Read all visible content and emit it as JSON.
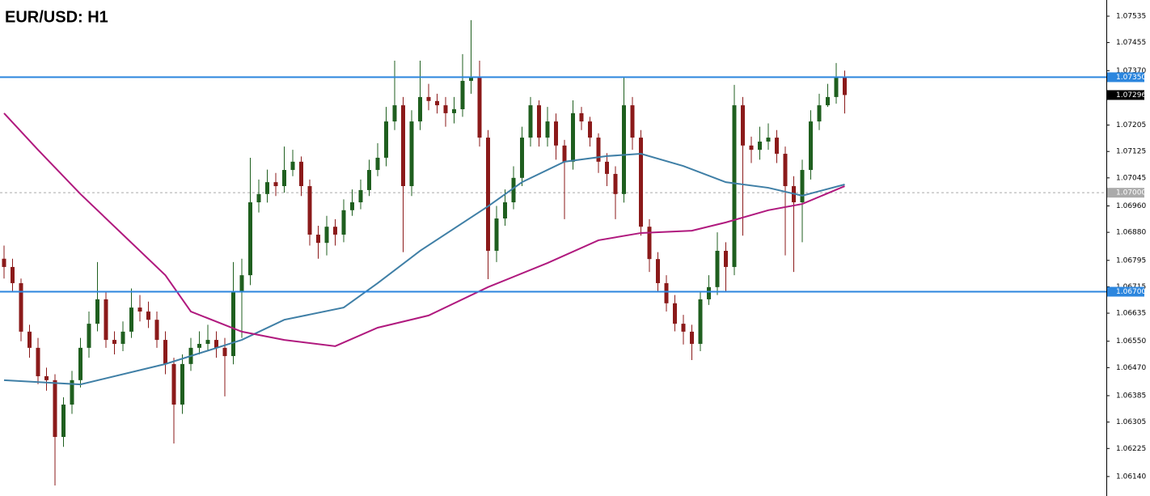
{
  "chart_data": {
    "type": "candlestick",
    "title": "EUR/USD: H1",
    "ylim": [
      1.06081,
      1.07584
    ],
    "yticks": [
      1.07535,
      1.07455,
      {
        "value": 1.0737,
        "label": "1.07370"
      },
      1.07205,
      1.07125,
      1.07045,
      {
        "value": 1.0696,
        "label": "1.06960"
      },
      {
        "value": 1.0688,
        "label": "1.06880"
      },
      1.06795,
      1.06715,
      1.06635,
      {
        "value": 1.0655,
        "label": "1.06550"
      },
      {
        "value": 1.0647,
        "label": "1.06470"
      },
      1.06385,
      1.06305,
      1.06225,
      {
        "value": 1.0614,
        "label": "1.06140"
      }
    ],
    "up_color": "#1f5f1f",
    "down_color": "#8b1a1a",
    "open": [
      1.068,
      1.06775,
      1.06726,
      1.06579,
      1.0653,
      1.06444,
      1.06432,
      1.0626,
      1.06358,
      1.06432,
      1.0653,
      1.06603,
      1.06677,
      1.06554,
      1.06542,
      1.06579,
      1.06652,
      1.0664,
      1.06615,
      1.06554,
      1.06481,
      1.06358,
      1.06481,
      1.0653,
      1.06542,
      1.06554,
      1.0653,
      1.06505,
      1.06701,
      1.0675,
      1.06971,
      1.06996,
      1.07032,
      1.0702,
      1.07069,
      1.07094,
      1.0702,
      1.06873,
      1.06848,
      1.06897,
      1.06873,
      1.06947,
      1.06971,
      1.07008,
      1.07069,
      1.07106,
      1.07216,
      1.07265,
      1.0702,
      1.07216,
      1.0729,
      1.07278,
      1.07265,
      1.07241,
      1.07253,
      1.07339,
      1.07351,
      1.07167,
      1.06824,
      1.06922,
      1.06971,
      1.07045,
      1.07167,
      1.07265,
      1.07167,
      1.07216,
      1.07143,
      1.07094,
      1.07241,
      1.07216,
      1.07167,
      1.07094,
      1.07057,
      1.06996,
      1.07265,
      1.07167,
      1.06897,
      1.06799,
      1.06726,
      1.06665,
      1.06603,
      1.06579,
      1.06542,
      1.06677,
      1.06714,
      1.06824,
      1.06775,
      1.07265,
      1.07143,
      1.0713,
      1.07155,
      1.07167,
      1.07118,
      1.0702,
      1.06971,
      1.07069,
      1.07216,
      1.07265,
      1.0729,
      1.07351
    ],
    "high": [
      1.0684,
      1.068,
      1.0674,
      1.066,
      1.0656,
      1.0647,
      1.0645,
      1.0638,
      1.0646,
      1.0656,
      1.0664,
      1.0679,
      1.067,
      1.0658,
      1.0661,
      1.0671,
      1.0669,
      1.0667,
      1.0664,
      1.0658,
      1.065,
      1.0651,
      1.0656,
      1.0658,
      1.066,
      1.0658,
      1.0656,
      1.0679,
      1.068,
      1.07106,
      1.0704,
      1.0707,
      1.0706,
      1.0714,
      1.0713,
      1.0711,
      1.0704,
      1.069,
      1.0693,
      1.0692,
      1.0698,
      1.0701,
      1.0704,
      1.071,
      1.0715,
      1.0726,
      1.074,
      1.0729,
      1.0725,
      1.074,
      1.0733,
      1.073,
      1.0729,
      1.0729,
      1.0742,
      1.07523,
      1.074,
      1.0719,
      1.0696,
      1.0701,
      1.0708,
      1.072,
      1.0729,
      1.0728,
      1.0726,
      1.0724,
      1.0716,
      1.0728,
      1.0726,
      1.0723,
      1.0718,
      1.0712,
      1.0708,
      1.07351,
      1.0729,
      1.0719,
      1.0692,
      1.0682,
      1.0675,
      1.0669,
      1.0663,
      1.066,
      1.067,
      1.0675,
      1.0688,
      1.0685,
      1.07327,
      1.0729,
      1.0717,
      1.072,
      1.0721,
      1.0719,
      1.0714,
      1.0705,
      1.071,
      1.0725,
      1.073,
      1.0733,
      1.07393,
      1.0737
    ],
    "low": [
      1.0674,
      1.067,
      1.0655,
      1.065,
      1.0642,
      1.064,
      1.06113,
      1.0623,
      1.0633,
      1.0641,
      1.065,
      1.0658,
      1.0653,
      1.0651,
      1.0652,
      1.0656,
      1.0661,
      1.0659,
      1.0653,
      1.0645,
      1.0624,
      1.0633,
      1.0646,
      1.0651,
      1.0652,
      1.065,
      1.06383,
      1.0648,
      1.0656,
      1.0672,
      1.0694,
      1.0697,
      1.0699,
      1.07,
      1.0705,
      1.0699,
      1.0684,
      1.068,
      1.0681,
      1.0684,
      1.0685,
      1.0693,
      1.0695,
      1.0699,
      1.0705,
      1.0708,
      1.0719,
      1.0682,
      1.0699,
      1.0719,
      1.0725,
      1.0724,
      1.072,
      1.0721,
      1.0723,
      1.073,
      1.0714,
      1.06738,
      1.0679,
      1.069,
      1.0695,
      1.0702,
      1.0714,
      1.0714,
      1.0714,
      1.071,
      1.0692,
      1.0707,
      1.0719,
      1.0714,
      1.0706,
      1.0702,
      1.0692,
      1.0697,
      1.0713,
      1.0687,
      1.0676,
      1.067,
      1.0664,
      1.0658,
      1.0654,
      1.06493,
      1.0652,
      1.0666,
      1.0669,
      1.067,
      1.0675,
      1.0687,
      1.0709,
      1.071,
      1.0713,
      1.0709,
      1.0681,
      1.0676,
      1.0685,
      1.0704,
      1.0719,
      1.0726,
      1.0727,
      1.0724
    ],
    "close": [
      1.06775,
      1.06726,
      1.06579,
      1.0653,
      1.06444,
      1.06432,
      1.0626,
      1.06358,
      1.06432,
      1.0653,
      1.06603,
      1.06677,
      1.06554,
      1.06542,
      1.06579,
      1.06652,
      1.0664,
      1.06615,
      1.06554,
      1.06481,
      1.06358,
      1.06481,
      1.0653,
      1.06542,
      1.06554,
      1.0653,
      1.06505,
      1.06701,
      1.0675,
      1.06971,
      1.06996,
      1.07032,
      1.0702,
      1.07069,
      1.07094,
      1.0702,
      1.06873,
      1.06848,
      1.06897,
      1.06873,
      1.06947,
      1.06971,
      1.07008,
      1.07069,
      1.07106,
      1.07216,
      1.07265,
      1.0702,
      1.07216,
      1.0729,
      1.07278,
      1.07265,
      1.07241,
      1.07253,
      1.07339,
      1.07351,
      1.07167,
      1.06824,
      1.06922,
      1.06971,
      1.07045,
      1.07167,
      1.07265,
      1.07167,
      1.07216,
      1.07143,
      1.07094,
      1.07241,
      1.07216,
      1.07167,
      1.07094,
      1.07057,
      1.06996,
      1.07265,
      1.07167,
      1.06897,
      1.06799,
      1.06726,
      1.06665,
      1.06603,
      1.06579,
      1.06542,
      1.06677,
      1.06714,
      1.06824,
      1.06775,
      1.07265,
      1.07143,
      1.0713,
      1.07155,
      1.07167,
      1.07118,
      1.0702,
      1.06971,
      1.07069,
      1.07216,
      1.07265,
      1.0729,
      1.07351,
      1.07296
    ],
    "series": [
      {
        "color": "#3f7fa6",
        "x": [
          0,
          9,
          19,
          28,
          33,
          40,
          44,
          49,
          57,
          61,
          66,
          71,
          75,
          80,
          85,
          90,
          94,
          99
        ],
        "values": [
          1.06432,
          1.06419,
          1.06481,
          1.06554,
          1.06615,
          1.06652,
          1.06726,
          1.06824,
          1.06959,
          1.07032,
          1.07094,
          1.07111,
          1.07118,
          1.07081,
          1.07032,
          1.07015,
          1.06991,
          1.07025
        ]
      },
      {
        "color": "#b0197e",
        "x": [
          0,
          4,
          9,
          14,
          19,
          22,
          28,
          33,
          39,
          44,
          50,
          57,
          64,
          70,
          75,
          81,
          85,
          90,
          94,
          99
        ],
        "values": [
          1.07241,
          1.0713,
          1.06996,
          1.06873,
          1.0675,
          1.0664,
          1.06579,
          1.06554,
          1.06535,
          1.06591,
          1.06628,
          1.06714,
          1.06787,
          1.06856,
          1.06878,
          1.06885,
          1.0691,
          1.06947,
          1.06966,
          1.0702
        ]
      }
    ],
    "levels": [
      {
        "value": 1.0735,
        "label": "1.07350",
        "color": "#2c86de"
      },
      {
        "value": 1.067,
        "label": "1.06700",
        "color": "#2c86de"
      }
    ],
    "dashed_level": {
      "value": 1.07,
      "label": "1.07000",
      "color": "#aaaaaa"
    },
    "last_price": {
      "value": 1.07296,
      "label": "1.07296",
      "color": "#000000"
    }
  }
}
